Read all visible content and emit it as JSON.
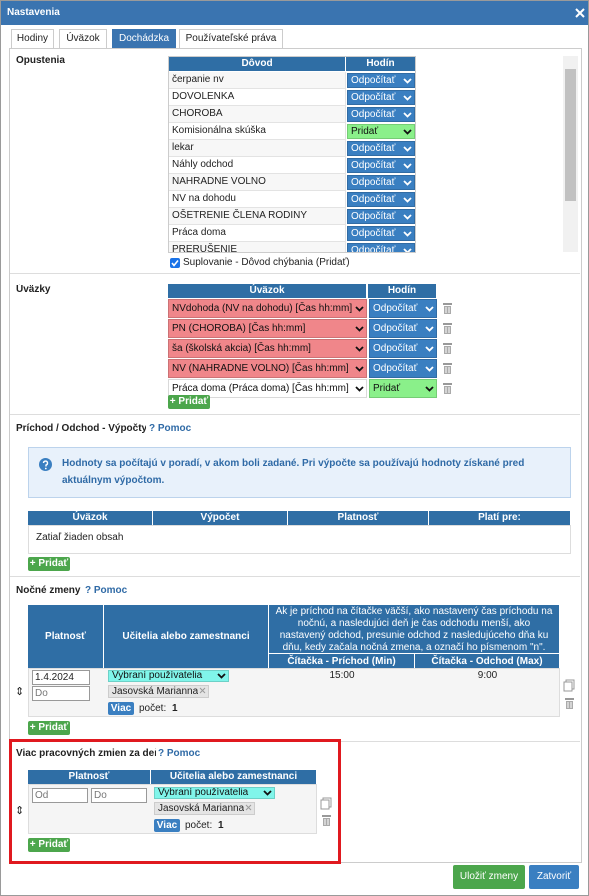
{
  "dialog": {
    "title": "Nastavenia"
  },
  "tabs": [
    "Hodiny",
    "Úväzok",
    "Dochádzka",
    "Používateľské práva"
  ],
  "opustenia": {
    "label": "Opustenia",
    "headers": [
      "Dôvod",
      "Hodín"
    ],
    "rows": [
      [
        "čerpanie nv",
        "Odpočítať"
      ],
      [
        "DOVOLENKA",
        "Odpočítať"
      ],
      [
        "CHOROBA",
        "Odpočítať"
      ],
      [
        "Komisionálna skúška",
        "Pridať"
      ],
      [
        "lekar",
        "Odpočítať"
      ],
      [
        "Náhly odchod",
        "Odpočítať"
      ],
      [
        "NAHRADNE VOLNO",
        "Odpočítať"
      ],
      [
        "NV na dohodu",
        "Odpočítať"
      ],
      [
        "OŠETRENIE ČLENA RODINY",
        "Odpočítať"
      ],
      [
        "Práca doma",
        "Odpočítať"
      ],
      [
        "PRERUŠENIE",
        "Odpočítať"
      ]
    ],
    "checkbox": "Suplovanie - Dôvod chýbania (Pridať)"
  },
  "uvazky": {
    "label": "Úväzky",
    "headers": [
      "Úväzok",
      "Hodín"
    ],
    "rows": [
      [
        "NVdohoda (NV na dohodu) [Čas hh:mm]",
        "Odpočítať"
      ],
      [
        "PN (CHOROBA) [Čas hh:mm]",
        "Odpočítať"
      ],
      [
        "ša (školská akcia) [Čas hh:mm]",
        "Odpočítať"
      ],
      [
        "NV (NAHRADNE VOLNO) [Čas hh:mm]",
        "Odpočítať"
      ],
      [
        "Práca doma (Práca doma) [Čas hh:mm]",
        "Pridať"
      ]
    ],
    "add": "+ Pridať"
  },
  "prichod": {
    "label": "Príchod / Odchod - Výpočty",
    "help": "? Pomoc",
    "info": "Hodnoty sa počítajú v poradí, v akom boli zadané. Pri výpočte sa používajú hodnoty získané pred aktuálnym výpočtom.",
    "headers": [
      "Úväzok",
      "Výpočet",
      "Platnosť",
      "Platí pre:"
    ],
    "empty": "Zatiaľ žiaden obsah",
    "add": "+ Pridať"
  },
  "nocne": {
    "label": "Nočné zmeny",
    "help": "? Pomoc",
    "headers": [
      "Platnosť",
      "Učitelia alebo zamestnanci",
      "Ak je príchod na čítačke väčší, ako nastavený čas príchodu na nočnú, a nasledujúci deň je čas odchodu menší, ako nastavený odchod, presunie odchod z nasledujúceho dňa ku dňu, kedy začala nočná zmena, a označí ho písmenom \"n\"."
    ],
    "subheaders": [
      "Čítačka - Príchod (Min)",
      "Čítačka - Odchod (Max)"
    ],
    "row": {
      "from": "1.4.2024",
      "to": "Do",
      "select": "Vybraní používatelia",
      "tag": "Jasovská Marianna",
      "more": "Viac",
      "count_label": "počet:",
      "count": 1,
      "arrival": "15:00",
      "departure": "9:00"
    },
    "add": "+ Pridať"
  },
  "viac": {
    "label": "Viac pracovných zmien za deň",
    "help": "? Pomoc",
    "headers": [
      "Platnosť",
      "Učitelia alebo zamestnanci"
    ],
    "row": {
      "from": "Od",
      "to": "Do",
      "select": "Vybraní používatelia",
      "tag": "Jasovská Marianna",
      "more": "Viac",
      "count_label": "počet:",
      "count": 1
    },
    "add": "+ Pridať"
  },
  "footer": {
    "save": "Uložiť zmeny",
    "close": "Zatvoriť"
  }
}
